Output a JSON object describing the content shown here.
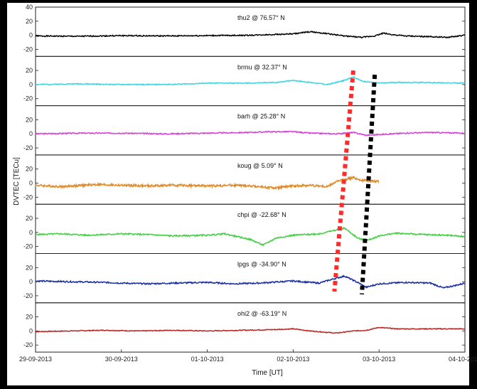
{
  "chart_data": {
    "type": "line",
    "xlabel": "Time [UT]",
    "ylabel": "DVTEC [TECu]",
    "x_ticks": [
      "29-09-2013",
      "30-09-2013",
      "01-10-2013",
      "02-10-2013",
      "03-10-2013",
      "04-10-2013"
    ],
    "xlim_days": [
      0,
      5
    ],
    "ylim": [
      -30,
      40
    ],
    "y_ticks": [
      -20,
      0,
      20,
      40
    ],
    "grid": false,
    "series": [
      {
        "name": "thu2 @ 76.57° N",
        "color": "#000000",
        "noise": 0.8,
        "seed": 1,
        "points": [
          [
            0,
            -1
          ],
          [
            0.5,
            -1.5
          ],
          [
            1,
            -0.5
          ],
          [
            1.5,
            -1
          ],
          [
            2,
            -0.5
          ],
          [
            2.5,
            0
          ],
          [
            3,
            2
          ],
          [
            3.2,
            5
          ],
          [
            3.35,
            3
          ],
          [
            3.6,
            -1
          ],
          [
            3.8,
            -3
          ],
          [
            3.95,
            -1
          ],
          [
            4.05,
            3
          ],
          [
            4.15,
            1
          ],
          [
            4.3,
            -1
          ],
          [
            4.6,
            -2
          ],
          [
            4.8,
            -3
          ],
          [
            5,
            0
          ]
        ]
      },
      {
        "name": "brmu @ 32.37° N",
        "color": "#3fd3e0",
        "noise": 0.7,
        "seed": 2,
        "points": [
          [
            0,
            0
          ],
          [
            0.5,
            1
          ],
          [
            1,
            0
          ],
          [
            1.5,
            0
          ],
          [
            1.8,
            1
          ],
          [
            2,
            2
          ],
          [
            2.5,
            2
          ],
          [
            2.8,
            3
          ],
          [
            3,
            6
          ],
          [
            3.2,
            3
          ],
          [
            3.4,
            0
          ],
          [
            3.6,
            6
          ],
          [
            3.7,
            11
          ],
          [
            3.8,
            5
          ],
          [
            4,
            2
          ],
          [
            4.2,
            3
          ],
          [
            4.5,
            3
          ],
          [
            5,
            2
          ]
        ]
      },
      {
        "name": "barh @ 25.28° N",
        "color": "#d63ed6",
        "noise": 0.8,
        "seed": 3,
        "points": [
          [
            0,
            0
          ],
          [
            0.5,
            1
          ],
          [
            1,
            1
          ],
          [
            1.5,
            0
          ],
          [
            2,
            1
          ],
          [
            2.5,
            2
          ],
          [
            2.7,
            3
          ],
          [
            3,
            3
          ],
          [
            3.2,
            1
          ],
          [
            3.5,
            0
          ],
          [
            3.7,
            2
          ],
          [
            3.85,
            -2
          ],
          [
            4,
            -1
          ],
          [
            4.3,
            1
          ],
          [
            4.6,
            2
          ],
          [
            5,
            1
          ]
        ]
      },
      {
        "name": "koug @ 5.09° N",
        "color": "#e08a2a",
        "noise": 1.6,
        "seed": 4,
        "points": [
          [
            0,
            -3
          ],
          [
            0.3,
            -5
          ],
          [
            0.7,
            -2
          ],
          [
            1,
            -3
          ],
          [
            1.3,
            -4
          ],
          [
            1.6,
            -3
          ],
          [
            2,
            -4
          ],
          [
            2.3,
            -3
          ],
          [
            2.5,
            -4
          ],
          [
            2.8,
            -7
          ],
          [
            3,
            -4
          ],
          [
            3.2,
            -3
          ],
          [
            3.4,
            -5
          ],
          [
            3.5,
            2
          ],
          [
            3.7,
            8
          ],
          [
            3.8,
            4
          ],
          [
            3.9,
            3
          ],
          [
            4,
            2
          ]
        ]
      },
      {
        "name": "chpi @ -22.68° N",
        "color": "#3fcf3f",
        "noise": 1.0,
        "seed": 5,
        "points": [
          [
            0,
            -3
          ],
          [
            0.3,
            -2
          ],
          [
            0.6,
            -4
          ],
          [
            1,
            -2
          ],
          [
            1.3,
            -3
          ],
          [
            1.6,
            -5
          ],
          [
            2,
            -4
          ],
          [
            2.2,
            -2
          ],
          [
            2.5,
            -10
          ],
          [
            2.65,
            -18
          ],
          [
            2.8,
            -8
          ],
          [
            3,
            -4
          ],
          [
            3.3,
            -2
          ],
          [
            3.6,
            6
          ],
          [
            3.75,
            -8
          ],
          [
            3.85,
            -12
          ],
          [
            4,
            -5
          ],
          [
            4.2,
            -1
          ],
          [
            4.5,
            -3
          ],
          [
            4.8,
            -4
          ],
          [
            5,
            -6
          ]
        ]
      },
      {
        "name": "lpgs @ -34.90° N",
        "color": "#1a2ea0",
        "noise": 1.0,
        "seed": 6,
        "points": [
          [
            0,
            1
          ],
          [
            0.4,
            0
          ],
          [
            0.8,
            -1
          ],
          [
            1,
            -2
          ],
          [
            1.3,
            -3
          ],
          [
            1.6,
            -2
          ],
          [
            2,
            -1
          ],
          [
            2.3,
            -3
          ],
          [
            2.6,
            -2
          ],
          [
            3,
            1
          ],
          [
            3.3,
            -2
          ],
          [
            3.5,
            5
          ],
          [
            3.6,
            8
          ],
          [
            3.75,
            -1
          ],
          [
            3.85,
            -8
          ],
          [
            4,
            -3
          ],
          [
            4.3,
            -1
          ],
          [
            4.6,
            -2
          ],
          [
            4.75,
            -9
          ],
          [
            4.9,
            -5
          ],
          [
            5,
            -2
          ]
        ]
      },
      {
        "name": "ohi2 @ -63.19° N",
        "color": "#b72525",
        "noise": 0.6,
        "seed": 7,
        "points": [
          [
            0,
            -1
          ],
          [
            0.4,
            0
          ],
          [
            0.8,
            1
          ],
          [
            1.2,
            0
          ],
          [
            1.6,
            1
          ],
          [
            2,
            0
          ],
          [
            2.4,
            1
          ],
          [
            2.8,
            2
          ],
          [
            3,
            3
          ],
          [
            3.2,
            0
          ],
          [
            3.5,
            -3
          ],
          [
            3.7,
            0
          ],
          [
            3.85,
            1
          ],
          [
            4,
            5
          ],
          [
            4.2,
            3
          ],
          [
            4.5,
            3
          ],
          [
            5,
            3
          ]
        ]
      }
    ],
    "annotations": [
      {
        "color": "#ff2a2a",
        "style": "dotted",
        "from": {
          "panel": 1,
          "x": 3.7,
          "y": 20
        },
        "to": {
          "panel": 5,
          "x": 3.48,
          "y": -14
        }
      },
      {
        "color": "#000000",
        "style": "dotted",
        "from": {
          "panel": 1,
          "x": 3.95,
          "y": 14
        },
        "to": {
          "panel": 5,
          "x": 3.8,
          "y": -18
        }
      }
    ]
  }
}
